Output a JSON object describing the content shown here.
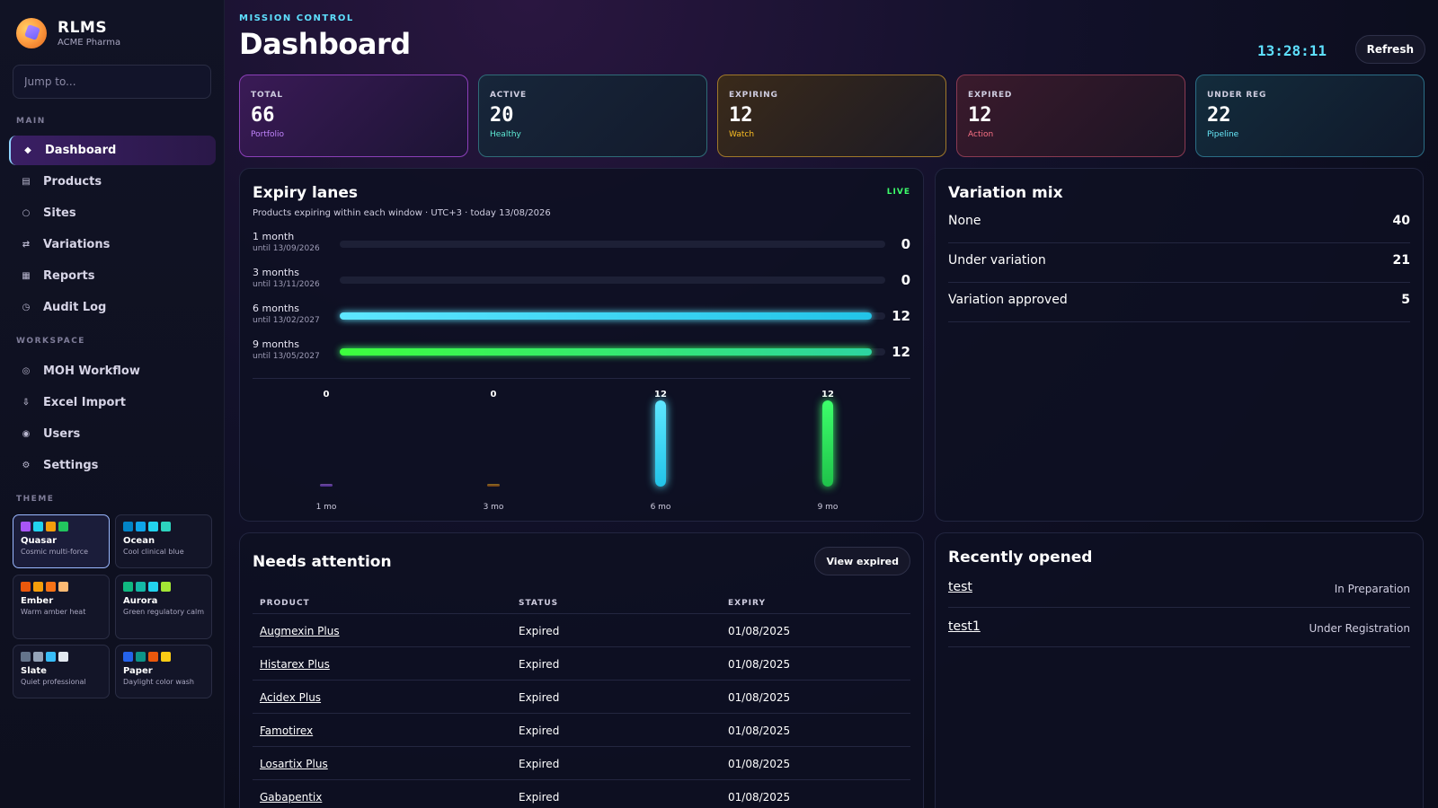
{
  "brand": {
    "name": "RLMS",
    "org": "ACME Pharma"
  },
  "search": {
    "placeholder": "Jump to..."
  },
  "sidebar": {
    "main_label": "MAIN",
    "main_items": [
      {
        "label": "Dashboard",
        "icon": "diamond-icon",
        "active": true
      },
      {
        "label": "Products",
        "icon": "box-icon"
      },
      {
        "label": "Sites",
        "icon": "location-icon"
      },
      {
        "label": "Variations",
        "icon": "swap-icon"
      },
      {
        "label": "Reports",
        "icon": "report-icon"
      },
      {
        "label": "Audit Log",
        "icon": "clock-icon"
      }
    ],
    "workspace_label": "WORKSPACE",
    "workspace_items": [
      {
        "label": "MOH Workflow",
        "icon": "workflow-icon"
      },
      {
        "label": "Excel Import",
        "icon": "download-icon"
      },
      {
        "label": "Users",
        "icon": "users-icon"
      },
      {
        "label": "Settings",
        "icon": "gear-icon"
      }
    ],
    "theme_label": "THEME",
    "themes": [
      {
        "name": "Quasar",
        "desc": "Cosmic multi-force",
        "active": true,
        "colors": [
          "#a855f7",
          "#22d3ee",
          "#f59e0b",
          "#22c55e"
        ]
      },
      {
        "name": "Ocean",
        "desc": "Cool clinical blue",
        "colors": [
          "#0284c7",
          "#0ea5e9",
          "#22d3ee",
          "#2dd4bf"
        ]
      },
      {
        "name": "Ember",
        "desc": "Warm amber heat",
        "colors": [
          "#ea580c",
          "#f59e0b",
          "#f97316",
          "#fdba74"
        ]
      },
      {
        "name": "Aurora",
        "desc": "Green regulatory calm",
        "colors": [
          "#10b981",
          "#14b8a6",
          "#22d3ee",
          "#a3e635"
        ]
      },
      {
        "name": "Slate",
        "desc": "Quiet professional",
        "colors": [
          "#64748b",
          "#94a3b8",
          "#38bdf8",
          "#e2e8f0"
        ]
      },
      {
        "name": "Paper",
        "desc": "Daylight color wash",
        "colors": [
          "#2563eb",
          "#0d9488",
          "#ea580c",
          "#facc15"
        ]
      }
    ]
  },
  "header": {
    "eyebrow": "MISSION CONTROL",
    "title": "Dashboard",
    "clock": "13:28:11",
    "refresh_label": "Refresh"
  },
  "kpis": [
    {
      "label": "TOTAL",
      "value": "66",
      "sub": "Portfolio",
      "sub_color": "#c084fc"
    },
    {
      "label": "ACTIVE",
      "value": "20",
      "sub": "Healthy",
      "sub_color": "#5eead4"
    },
    {
      "label": "EXPIRING",
      "value": "12",
      "sub": "Watch",
      "sub_color": "#fbbf24"
    },
    {
      "label": "EXPIRED",
      "value": "12",
      "sub": "Action",
      "sub_color": "#fb7185"
    },
    {
      "label": "UNDER REG",
      "value": "22",
      "sub": "Pipeline",
      "sub_color": "#67e8f9"
    }
  ],
  "expiry": {
    "title": "Expiry lanes",
    "live": "LIVE",
    "subtitle": "Products expiring within each window · UTC+3 · today 13/08/2026",
    "lanes": [
      {
        "name": "1 month",
        "until": "until 13/09/2026",
        "value": 0
      },
      {
        "name": "3 months",
        "until": "until 13/11/2026",
        "value": 0
      },
      {
        "name": "6 months",
        "until": "until 13/02/2027",
        "value": 12
      },
      {
        "name": "9 months",
        "until": "until 13/05/2027",
        "value": 12
      }
    ],
    "columns": [
      {
        "label": "1 mo",
        "value": 0
      },
      {
        "label": "3 mo",
        "value": 0
      },
      {
        "label": "6 mo",
        "value": 12
      },
      {
        "label": "9 mo",
        "value": 12
      }
    ]
  },
  "chart_data": {
    "type": "bar",
    "title": "Expiry lanes",
    "categories": [
      "1 mo",
      "3 mo",
      "6 mo",
      "9 mo"
    ],
    "values": [
      0,
      0,
      12,
      12
    ]
  },
  "variation_mix": {
    "title": "Variation mix",
    "rows": [
      {
        "label": "None",
        "value": "40"
      },
      {
        "label": "Under variation",
        "value": "21"
      },
      {
        "label": "Variation approved",
        "value": "5"
      }
    ]
  },
  "attention": {
    "title": "Needs attention",
    "view_expired_label": "View expired",
    "columns": [
      "PRODUCT",
      "STATUS",
      "EXPIRY"
    ],
    "rows": [
      {
        "product": "Augmexin Plus",
        "status": "Expired",
        "expiry": "01/08/2025"
      },
      {
        "product": "Histarex Plus",
        "status": "Expired",
        "expiry": "01/08/2025"
      },
      {
        "product": "Acidex Plus",
        "status": "Expired",
        "expiry": "01/08/2025"
      },
      {
        "product": "Famotirex",
        "status": "Expired",
        "expiry": "01/08/2025"
      },
      {
        "product": "Losartix Plus",
        "status": "Expired",
        "expiry": "01/08/2025"
      },
      {
        "product": "Gabapentix",
        "status": "Expired",
        "expiry": "01/08/2025"
      }
    ]
  },
  "recent": {
    "title": "Recently opened",
    "rows": [
      {
        "name": "test",
        "status": "In Preparation"
      },
      {
        "name": "test1",
        "status": "Under Registration"
      }
    ]
  }
}
